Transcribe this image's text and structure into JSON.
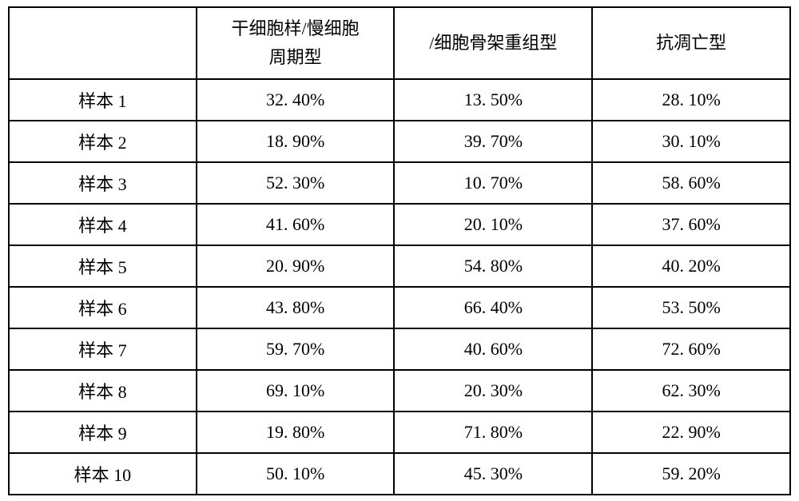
{
  "table": {
    "columns": [
      {
        "label": ""
      },
      {
        "label": "干细胞样/慢细胞\n周期型"
      },
      {
        "label": "/细胞骨架重组型"
      },
      {
        "label": "抗凋亡型"
      }
    ],
    "rows": [
      {
        "label": "样本 1",
        "c1": "32. 40%",
        "c2": "13. 50%",
        "c3": "28. 10%"
      },
      {
        "label": "样本 2",
        "c1": "18. 90%",
        "c2": "39. 70%",
        "c3": "30. 10%"
      },
      {
        "label": "样本 3",
        "c1": "52. 30%",
        "c2": "10. 70%",
        "c3": "58. 60%"
      },
      {
        "label": "样本 4",
        "c1": "41. 60%",
        "c2": "20. 10%",
        "c3": "37. 60%"
      },
      {
        "label": "样本 5",
        "c1": "20. 90%",
        "c2": "54. 80%",
        "c3": "40. 20%"
      },
      {
        "label": "样本 6",
        "c1": "43. 80%",
        "c2": "66. 40%",
        "c3": "53. 50%"
      },
      {
        "label": "样本 7",
        "c1": "59. 70%",
        "c2": "40. 60%",
        "c3": "72. 60%"
      },
      {
        "label": "样本 8",
        "c1": "69. 10%",
        "c2": "20. 30%",
        "c3": "62. 30%"
      },
      {
        "label": "样本 9",
        "c1": "19. 80%",
        "c2": "71. 80%",
        "c3": "22. 90%"
      },
      {
        "label": "样本 10",
        "c1": "50. 10%",
        "c2": "45. 30%",
        "c3": "59. 20%"
      }
    ],
    "styling": {
      "type": "table",
      "border_color": "#000000",
      "border_width": 2,
      "background_color": "#ffffff",
      "text_color": "#000000",
      "font_size": 22,
      "font_family": "SimSun",
      "header_row_height": 90,
      "data_row_height": 52,
      "column_widths_pct": [
        24,
        25.33,
        25.33,
        25.33
      ],
      "text_align": "center"
    }
  }
}
